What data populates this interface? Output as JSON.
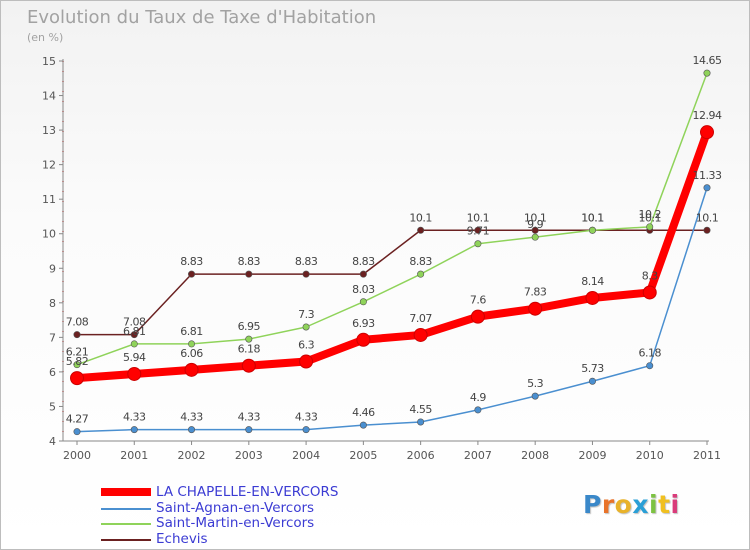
{
  "header": {
    "title": "Evolution du Taux de Taxe d'Habitation",
    "subtitle": "(en %)"
  },
  "logo": {
    "text": "Proxiti",
    "colors": [
      "#3a88c9",
      "#e8732a",
      "#e8b22a",
      "#2a9fd6",
      "#7dc242",
      "#f0c020",
      "#d93b7a"
    ]
  },
  "chart_data": {
    "type": "line",
    "x": [
      2000,
      2001,
      2002,
      2003,
      2004,
      2005,
      2006,
      2007,
      2008,
      2009,
      2010,
      2011
    ],
    "x_tick_labels": [
      "2000",
      "2001",
      "2002",
      "2003",
      "2004",
      "2005",
      "2006",
      "2007",
      "2008",
      "2009",
      "2010",
      "2011"
    ],
    "ylim": [
      4,
      15
    ],
    "y_ticks": [
      4,
      5,
      6,
      7,
      8,
      9,
      10,
      11,
      12,
      13,
      14,
      15
    ],
    "grid": false,
    "legend_position": "bottom-left",
    "series": [
      {
        "name": "Echevis",
        "color": "#6b2121",
        "values": [
          7.08,
          7.08,
          8.83,
          8.83,
          8.83,
          8.83,
          10.1,
          10.1,
          10.1,
          10.1,
          10.1,
          10.1
        ],
        "labels": [
          "7.08",
          "7.08",
          "8.83",
          "8.83",
          "8.83",
          "8.83",
          "10.1",
          "10.1",
          "10.1",
          "10.1",
          "10.1",
          "10.1"
        ]
      },
      {
        "name": "Saint-Martin-en-Vercors",
        "color": "#8fd35a",
        "values": [
          6.21,
          6.81,
          6.81,
          6.95,
          7.3,
          8.03,
          8.83,
          9.71,
          9.9,
          10.1,
          10.2,
          14.65
        ],
        "labels": [
          "6.21",
          "6.81",
          "6.81",
          "6.95",
          "7.3",
          "8.03",
          "8.83",
          "9.71",
          "9.9",
          "10.1",
          "10.2",
          "14.65"
        ]
      },
      {
        "name": "Saint-Agnan-en-Vercors",
        "color": "#4a8fd0",
        "values": [
          4.27,
          4.33,
          4.33,
          4.33,
          4.33,
          4.46,
          4.55,
          4.9,
          5.3,
          5.73,
          6.18,
          11.33
        ],
        "labels": [
          "4.27",
          "4.33",
          "4.33",
          "4.33",
          "4.33",
          "4.46",
          "4.55",
          "4.9",
          "5.3",
          "5.73",
          "6.18",
          "11.33"
        ]
      },
      {
        "name": "LA CHAPELLE-EN-VERCORS",
        "color": "#ff0000",
        "values": [
          5.82,
          5.94,
          6.06,
          6.18,
          6.3,
          6.93,
          7.07,
          7.6,
          7.83,
          8.14,
          8.3,
          12.94
        ],
        "labels": [
          "5.82",
          "5.94",
          "6.06",
          "6.18",
          "6.3",
          "6.93",
          "7.07",
          "7.6",
          "7.83",
          "8.14",
          "8.3",
          "12.94"
        ]
      }
    ]
  },
  "legend": {
    "items": [
      {
        "label": "LA CHAPELLE-EN-VERCORS",
        "color": "#ff0000"
      },
      {
        "label": "Saint-Agnan-en-Vercors",
        "color": "#4a8fd0"
      },
      {
        "label": "Saint-Martin-en-Vercors",
        "color": "#8fd35a"
      },
      {
        "label": "Echevis",
        "color": "#6b2121"
      }
    ]
  }
}
